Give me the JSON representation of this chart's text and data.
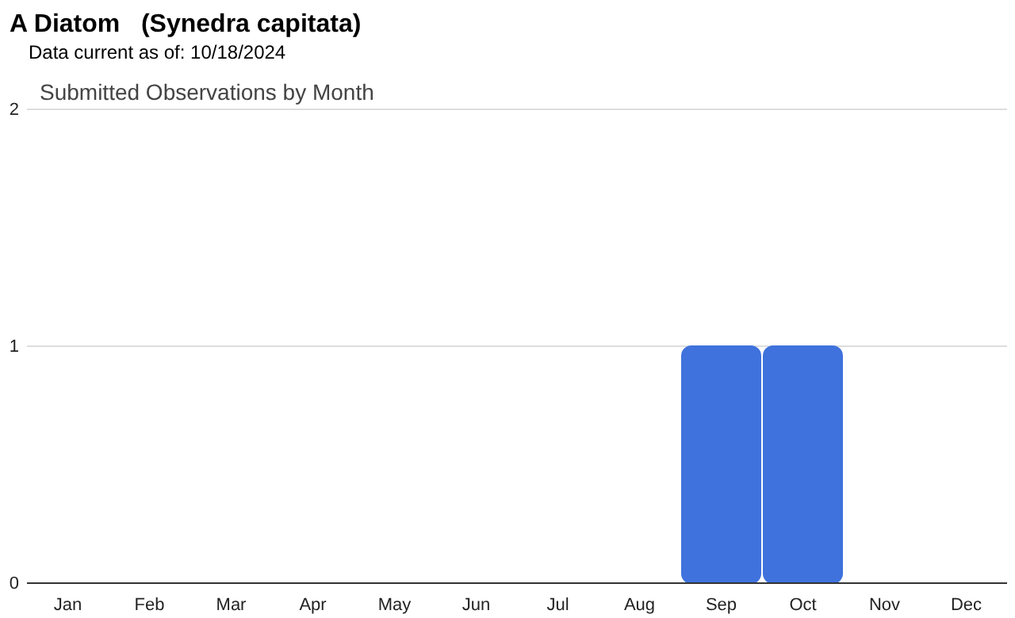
{
  "chart_data": {
    "type": "bar",
    "title": "A Diatom   (Synedra capitata)",
    "subtitle": "Data current as of: 10/18/2024",
    "annotations": [
      "Submitted Observations by Month"
    ],
    "categories": [
      "Jan",
      "Feb",
      "Mar",
      "Apr",
      "May",
      "Jun",
      "Jul",
      "Aug",
      "Sep",
      "Oct",
      "Nov",
      "Dec"
    ],
    "values": [
      0,
      0,
      0,
      0,
      0,
      0,
      0,
      0,
      1,
      1,
      0,
      0
    ],
    "color": "#3f72dc",
    "ylim": [
      0,
      2
    ],
    "yticks": [
      0,
      1,
      2
    ],
    "grid": "y"
  }
}
